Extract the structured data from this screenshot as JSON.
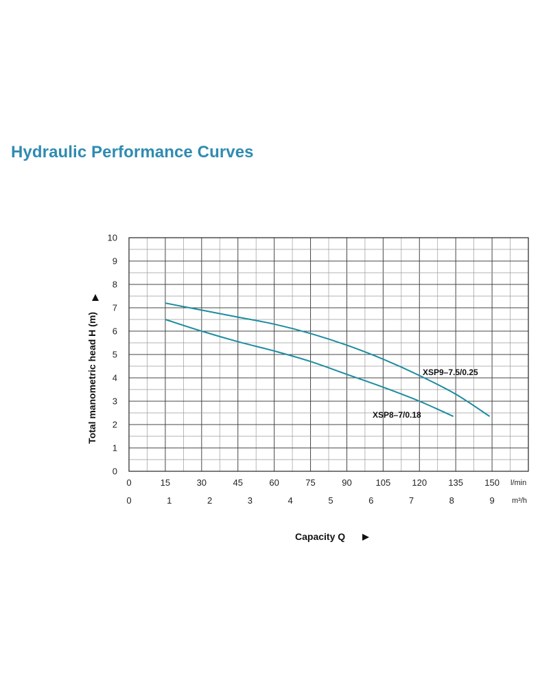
{
  "page": {
    "title": "Hydraulic Performance Curves"
  },
  "chart_data": {
    "type": "line",
    "xlabel": "Capacity Q",
    "ylabel": "Total manometric head H (m)",
    "x_unit_primary": "l/min",
    "x_unit_secondary": "m³/h",
    "x_ticks_primary": [
      "0",
      "15",
      "30",
      "45",
      "60",
      "75",
      "90",
      "105",
      "120",
      "135",
      "150"
    ],
    "x_ticks_secondary": [
      "0",
      "1",
      "2",
      "3",
      "4",
      "5",
      "6",
      "7",
      "8",
      "9"
    ],
    "y_ticks": [
      "0",
      "1",
      "2",
      "3",
      "4",
      "5",
      "6",
      "7",
      "8",
      "9",
      "10"
    ],
    "xlim": [
      0,
      165
    ],
    "ylim": [
      0,
      10
    ],
    "grid": true,
    "line_color": "#1b8ca0",
    "series": [
      {
        "name": "XSP9–7.5/0.25",
        "x": [
          15,
          30,
          45,
          60,
          75,
          90,
          105,
          120,
          135,
          149
        ],
        "y": [
          7.2,
          6.9,
          6.6,
          6.3,
          5.9,
          5.4,
          4.8,
          4.1,
          3.3,
          2.35
        ]
      },
      {
        "name": "XSP8–7/0.18",
        "x": [
          15,
          30,
          45,
          60,
          75,
          90,
          105,
          120,
          134
        ],
        "y": [
          6.5,
          6.0,
          5.55,
          5.15,
          4.7,
          4.15,
          3.6,
          3.0,
          2.35
        ]
      }
    ]
  }
}
